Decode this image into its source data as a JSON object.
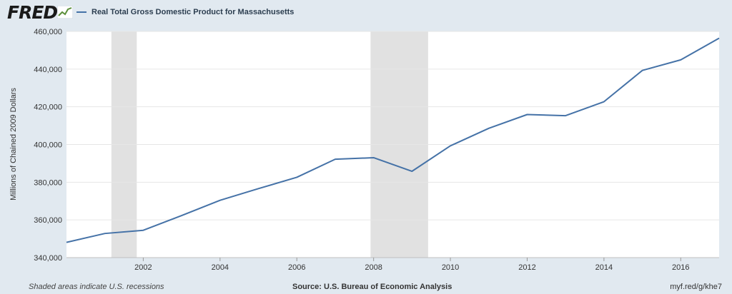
{
  "brand": {
    "logo_text": "FRED",
    "accent": "#4572a7",
    "icon": "chart-line-icon"
  },
  "legend": {
    "label": "Real Total Gross Domestic Product for Massachusetts"
  },
  "footer": {
    "note": "Shaded areas indicate U.S. recessions",
    "source": "Source: U.S. Bureau of Economic Analysis",
    "link": "myf.red/g/khe7"
  },
  "chart_data": {
    "type": "line",
    "title": "",
    "xlabel": "",
    "ylabel": "Millions of Chained 2009 Dollars",
    "x": [
      2000,
      2001,
      2002,
      2003,
      2004,
      2005,
      2006,
      2007,
      2008,
      2009,
      2010,
      2011,
      2012,
      2013,
      2014,
      2015,
      2016,
      2017
    ],
    "series": [
      {
        "name": "Real Total Gross Domestic Product for Massachusetts",
        "values": [
          348100,
          352800,
          354500,
          362300,
          370400,
          376600,
          382600,
          392200,
          393000,
          385800,
          399300,
          408600,
          415900,
          415300,
          422700,
          439300,
          444900,
          456400
        ]
      }
    ],
    "xlim": [
      2000,
      2017
    ],
    "ylim": [
      340000,
      460000
    ],
    "yticks": [
      340000,
      360000,
      380000,
      400000,
      420000,
      440000,
      460000
    ],
    "ytick_labels": [
      "340,000",
      "360,000",
      "380,000",
      "400,000",
      "420,000",
      "440,000",
      "460,000"
    ],
    "xticks": [
      2002,
      2004,
      2006,
      2008,
      2010,
      2012,
      2014,
      2016
    ],
    "xtick_labels": [
      "2002",
      "2004",
      "2006",
      "2008",
      "2010",
      "2012",
      "2014",
      "2016"
    ],
    "recessions": [
      [
        2001.17,
        2001.83
      ],
      [
        2007.92,
        2009.42
      ]
    ],
    "grid": true,
    "line_color": "#4572a7",
    "recession_color": "#e1e1e1",
    "legend_position": "top-left"
  }
}
